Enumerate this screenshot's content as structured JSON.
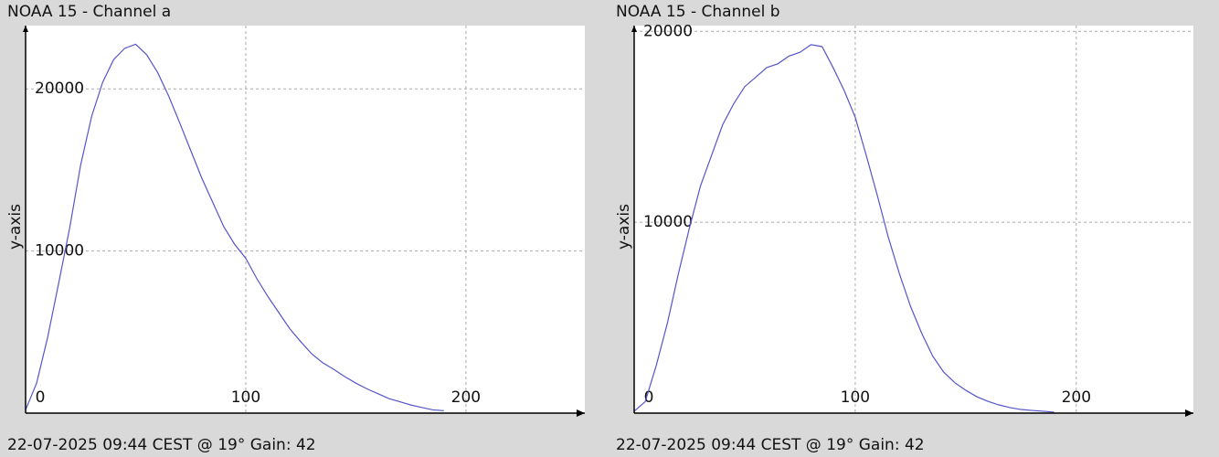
{
  "chart_data": [
    {
      "type": "line",
      "title": "NOAA 15 - Channel a",
      "ylabel": "y-axis",
      "annotation": "22-07-2025 09:44 CEST @ 19° Gain: 42",
      "color": "#5555cc",
      "grid": true,
      "xlim": [
        0,
        254
      ],
      "ylim": [
        0,
        23900
      ],
      "xticks": [
        0,
        100,
        200
      ],
      "yticks": [
        10000,
        20000
      ],
      "x": [
        0,
        5,
        10,
        15,
        20,
        25,
        30,
        35,
        40,
        45,
        50,
        55,
        60,
        65,
        70,
        75,
        80,
        85,
        90,
        95,
        100,
        105,
        110,
        115,
        120,
        125,
        130,
        135,
        140,
        145,
        150,
        155,
        160,
        165,
        170,
        175,
        180,
        185,
        190
      ],
      "values": [
        200,
        1850,
        4660,
        8000,
        11400,
        15300,
        18300,
        20400,
        21800,
        22500,
        22750,
        22100,
        21000,
        19550,
        17900,
        16200,
        14500,
        13000,
        11500,
        10400,
        9550,
        8300,
        7200,
        6200,
        5200,
        4400,
        3650,
        3100,
        2700,
        2250,
        1850,
        1500,
        1200,
        900,
        700,
        500,
        350,
        200,
        150
      ]
    },
    {
      "type": "line",
      "title": "NOAA 15 - Channel b",
      "ylabel": "y-axis",
      "annotation": "22-07-2025 09:44 CEST @ 19° Gain: 42",
      "color": "#5555cc",
      "grid": true,
      "xlim": [
        0,
        253
      ],
      "ylim": [
        0,
        20300
      ],
      "xticks": [
        0,
        100,
        200
      ],
      "yticks": [
        10000,
        20000
      ],
      "x": [
        0,
        5,
        10,
        15,
        20,
        25,
        30,
        35,
        40,
        45,
        50,
        55,
        60,
        65,
        70,
        75,
        80,
        85,
        90,
        95,
        100,
        105,
        110,
        115,
        120,
        125,
        130,
        135,
        140,
        145,
        150,
        155,
        160,
        165,
        170,
        175,
        180,
        185,
        190
      ],
      "values": [
        100,
        600,
        2500,
        4700,
        7300,
        9700,
        11900,
        13500,
        15100,
        16200,
        17100,
        17600,
        18100,
        18300,
        18700,
        18900,
        19300,
        19200,
        18100,
        16900,
        15500,
        13500,
        11400,
        9200,
        7300,
        5600,
        4200,
        3000,
        2150,
        1600,
        1200,
        860,
        620,
        430,
        290,
        190,
        140,
        100,
        50
      ]
    }
  ]
}
